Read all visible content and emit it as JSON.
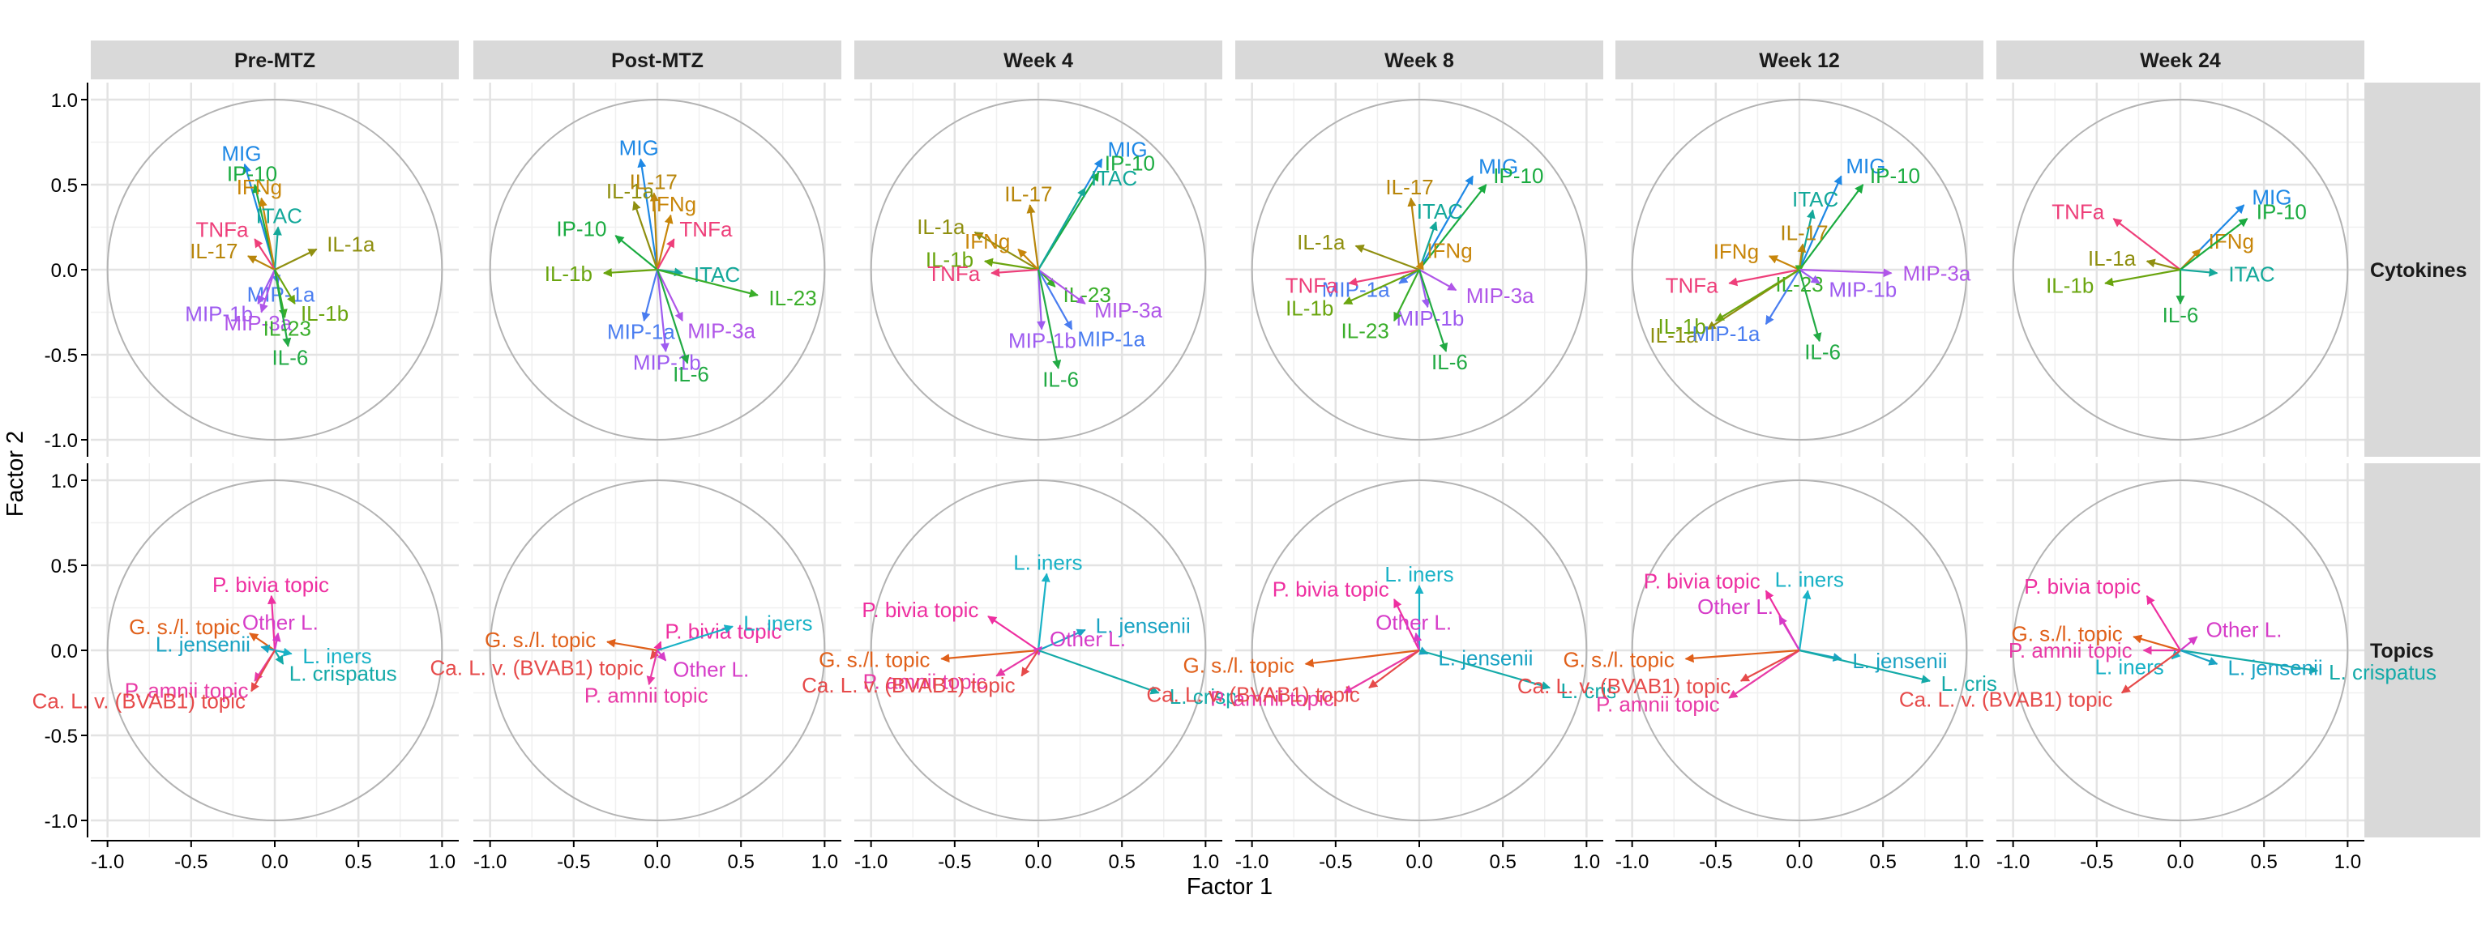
{
  "chart_data": {
    "type": "biplot",
    "xlabel": "Factor 1",
    "ylabel": "Factor 2",
    "xlim": [
      -1.1,
      1.1
    ],
    "ylim": [
      -1.1,
      1.1
    ],
    "x_ticks": [
      -1.0,
      -0.5,
      0.0,
      0.5,
      1.0
    ],
    "y_ticks": [
      -1.0,
      -0.5,
      0.0,
      0.5,
      1.0
    ],
    "x_tick_labels": [
      "-1.0",
      "-0.5",
      "0.0",
      "0.5",
      "1.0"
    ],
    "y_tick_labels": [
      "-1.0",
      "-0.5",
      "0.0",
      "0.5",
      "1.0"
    ],
    "grid": true,
    "unit_circle": true,
    "columns": [
      "Pre-MTZ",
      "Post-MTZ",
      "Week 4",
      "Week 8",
      "Week 12",
      "Week 24"
    ],
    "rows": [
      "Cytokines",
      "Topics"
    ],
    "colors": {
      "MIG": "#1e88e5",
      "IP-10": "#1aab40",
      "IFNg": "#c8860a",
      "ITAC": "#14a89a",
      "TNFa": "#ee3f7a",
      "IL-1a": "#8f8f10",
      "IL-17": "#b8860b",
      "IL-1b": "#6aa50f",
      "MIP-1a": "#4a7df0",
      "MIP-1b": "#9e5bf0",
      "MIP-3a": "#b056e8",
      "IL-23": "#3aae2a",
      "IL-6": "#22aa44",
      "P. bivia topic": "#ee2fa0",
      "G. s./l. topic": "#e0601a",
      "Other L.": "#d63cc8",
      "L. jensenii": "#1aa3c3",
      "L. iners": "#19b2c6",
      "L. crispatus": "#14aaa8",
      "P. amnii topic": "#e83aa6",
      "Ca. L. v. (BVAB1) topic": "#e64a4a"
    },
    "panels": [
      {
        "row": "Cytokines",
        "column": "Pre-MTZ",
        "vectors": [
          {
            "name": "MIG",
            "x": -0.18,
            "y": 0.62
          },
          {
            "name": "IP-10",
            "x": -0.12,
            "y": 0.5
          },
          {
            "name": "IFNg",
            "x": -0.08,
            "y": 0.42
          },
          {
            "name": "ITAC",
            "x": 0.02,
            "y": 0.25
          },
          {
            "name": "TNFa",
            "x": -0.12,
            "y": 0.18
          },
          {
            "name": "IL-17",
            "x": -0.16,
            "y": 0.08
          },
          {
            "name": "IL-1a",
            "x": 0.25,
            "y": 0.12
          },
          {
            "name": "MIP-1a",
            "x": 0.02,
            "y": -0.08
          },
          {
            "name": "MIP-1b",
            "x": -0.1,
            "y": -0.2
          },
          {
            "name": "IL-1b",
            "x": 0.12,
            "y": -0.2
          },
          {
            "name": "MIP-3a",
            "x": -0.08,
            "y": -0.25
          },
          {
            "name": "IL-23",
            "x": 0.06,
            "y": -0.28
          },
          {
            "name": "IL-6",
            "x": 0.08,
            "y": -0.45
          }
        ]
      },
      {
        "row": "Cytokines",
        "column": "Post-MTZ",
        "vectors": [
          {
            "name": "MIG",
            "x": -0.1,
            "y": 0.65
          },
          {
            "name": "IL-1a",
            "x": -0.14,
            "y": 0.4
          },
          {
            "name": "IL-17",
            "x": -0.02,
            "y": 0.45
          },
          {
            "name": "IFNg",
            "x": 0.08,
            "y": 0.32
          },
          {
            "name": "IP-10",
            "x": -0.25,
            "y": 0.2
          },
          {
            "name": "TNFa",
            "x": 0.1,
            "y": 0.18
          },
          {
            "name": "ITAC",
            "x": 0.15,
            "y": -0.02
          },
          {
            "name": "IL-1b",
            "x": -0.32,
            "y": -0.02
          },
          {
            "name": "IL-23",
            "x": 0.6,
            "y": -0.15
          },
          {
            "name": "MIP-1a",
            "x": -0.08,
            "y": -0.3
          },
          {
            "name": "MIP-3a",
            "x": 0.15,
            "y": -0.3
          },
          {
            "name": "MIP-1b",
            "x": 0.05,
            "y": -0.48
          },
          {
            "name": "IL-6",
            "x": 0.18,
            "y": -0.55
          }
        ]
      },
      {
        "row": "Cytokines",
        "column": "Week 4",
        "vectors": [
          {
            "name": "MIG",
            "x": 0.38,
            "y": 0.65
          },
          {
            "name": "IP-10",
            "x": 0.36,
            "y": 0.57
          },
          {
            "name": "ITAC",
            "x": 0.28,
            "y": 0.48
          },
          {
            "name": "IL-17",
            "x": -0.05,
            "y": 0.38
          },
          {
            "name": "IL-1a",
            "x": -0.38,
            "y": 0.22
          },
          {
            "name": "IFNg",
            "x": -0.12,
            "y": 0.12
          },
          {
            "name": "IL-1b",
            "x": -0.32,
            "y": 0.05
          },
          {
            "name": "TNFa",
            "x": -0.28,
            "y": -0.02
          },
          {
            "name": "IL-23",
            "x": 0.1,
            "y": -0.1
          },
          {
            "name": "MIP-3a",
            "x": 0.28,
            "y": -0.2
          },
          {
            "name": "MIP-1b",
            "x": 0.02,
            "y": -0.35
          },
          {
            "name": "MIP-1a",
            "x": 0.2,
            "y": -0.35
          },
          {
            "name": "IL-6",
            "x": 0.12,
            "y": -0.58
          }
        ]
      },
      {
        "row": "Cytokines",
        "column": "Week 8",
        "vectors": [
          {
            "name": "MIG",
            "x": 0.32,
            "y": 0.55
          },
          {
            "name": "IP-10",
            "x": 0.4,
            "y": 0.5
          },
          {
            "name": "IL-17",
            "x": -0.05,
            "y": 0.42
          },
          {
            "name": "ITAC",
            "x": 0.1,
            "y": 0.28
          },
          {
            "name": "IL-1a",
            "x": -0.38,
            "y": 0.14
          },
          {
            "name": "IFNg",
            "x": 0.02,
            "y": 0.05
          },
          {
            "name": "MIP-1a",
            "x": -0.12,
            "y": -0.08
          },
          {
            "name": "TNFa",
            "x": -0.42,
            "y": -0.08
          },
          {
            "name": "MIP-3a",
            "x": 0.22,
            "y": -0.12
          },
          {
            "name": "IL-1b",
            "x": -0.45,
            "y": -0.2
          },
          {
            "name": "MIP-1b",
            "x": 0.05,
            "y": -0.22
          },
          {
            "name": "IL-23",
            "x": -0.15,
            "y": -0.3
          },
          {
            "name": "IL-6",
            "x": 0.16,
            "y": -0.48
          }
        ]
      },
      {
        "row": "Cytokines",
        "column": "Week 12",
        "vectors": [
          {
            "name": "MIG",
            "x": 0.25,
            "y": 0.55
          },
          {
            "name": "IP-10",
            "x": 0.38,
            "y": 0.5
          },
          {
            "name": "ITAC",
            "x": 0.08,
            "y": 0.35
          },
          {
            "name": "IFNg",
            "x": -0.18,
            "y": 0.08
          },
          {
            "name": "IL-17",
            "x": 0.02,
            "y": 0.15
          },
          {
            "name": "TNFa",
            "x": -0.42,
            "y": -0.08
          },
          {
            "name": "IL-23",
            "x": 0.0,
            "y": -0.02
          },
          {
            "name": "MIP-3a",
            "x": 0.55,
            "y": -0.02
          },
          {
            "name": "IL-1a",
            "x": -0.55,
            "y": -0.35
          },
          {
            "name": "MIP-1b",
            "x": 0.12,
            "y": -0.08
          },
          {
            "name": "MIP-1a",
            "x": -0.2,
            "y": -0.32
          },
          {
            "name": "IL-1b",
            "x": -0.5,
            "y": -0.3
          },
          {
            "name": "IL-6",
            "x": 0.12,
            "y": -0.42
          }
        ]
      },
      {
        "row": "Cytokines",
        "column": "Week 24",
        "vectors": [
          {
            "name": "MIG",
            "x": 0.38,
            "y": 0.38
          },
          {
            "name": "TNFa",
            "x": -0.4,
            "y": 0.3
          },
          {
            "name": "IFNg",
            "x": 0.12,
            "y": 0.12
          },
          {
            "name": "IP-10",
            "x": 0.4,
            "y": 0.3
          },
          {
            "name": "IL-1a",
            "x": -0.2,
            "y": 0.05
          },
          {
            "name": "ITAC",
            "x": 0.22,
            "y": -0.02
          },
          {
            "name": "IL-1b",
            "x": -0.45,
            "y": -0.08
          },
          {
            "name": "IL-6",
            "x": 0.0,
            "y": -0.2
          }
        ]
      },
      {
        "row": "Topics",
        "column": "Pre-MTZ",
        "vectors": [
          {
            "name": "P. bivia topic",
            "x": -0.02,
            "y": 0.32
          },
          {
            "name": "G. s./l. topic",
            "x": -0.15,
            "y": 0.1
          },
          {
            "name": "Other L.",
            "x": 0.02,
            "y": 0.1
          },
          {
            "name": "L. jensenii",
            "x": -0.08,
            "y": 0.02
          },
          {
            "name": "L. iners",
            "x": 0.1,
            "y": -0.02
          },
          {
            "name": "L. crispatus",
            "x": 0.05,
            "y": -0.08
          },
          {
            "name": "P. amnii topic",
            "x": -0.12,
            "y": -0.18
          },
          {
            "name": "Ca. L. v. (BVAB1) topic",
            "x": -0.14,
            "y": -0.24
          }
        ]
      },
      {
        "row": "Topics",
        "column": "Post-MTZ",
        "vectors": [
          {
            "name": "G. s./l. topic",
            "x": -0.3,
            "y": 0.05
          },
          {
            "name": "P. bivia topic",
            "x": 0.02,
            "y": 0.05
          },
          {
            "name": "L. iners",
            "x": 0.45,
            "y": 0.14
          },
          {
            "name": "Ca. L. v. (BVAB1) topic",
            "x": -0.04,
            "y": -0.05
          },
          {
            "name": "Other L.",
            "x": 0.05,
            "y": -0.06
          },
          {
            "name": "P. amnii topic",
            "x": -0.05,
            "y": -0.2
          }
        ]
      },
      {
        "row": "Topics",
        "column": "Week 4",
        "vectors": [
          {
            "name": "L. iners",
            "x": 0.05,
            "y": 0.45
          },
          {
            "name": "P. bivia topic",
            "x": -0.3,
            "y": 0.2
          },
          {
            "name": "L. jensenii",
            "x": 0.28,
            "y": 0.12
          },
          {
            "name": "G. s./l. topic",
            "x": -0.58,
            "y": -0.05
          },
          {
            "name": "Other L.",
            "x": 0.02,
            "y": 0.02
          },
          {
            "name": "P. amnii topic",
            "x": -0.25,
            "y": -0.15
          },
          {
            "name": "L. crispatus",
            "x": 0.72,
            "y": -0.25
          },
          {
            "name": "Ca. L. v. (BVAB1) topic",
            "x": -0.1,
            "y": -0.15
          }
        ]
      },
      {
        "row": "Topics",
        "column": "Week 8",
        "vectors": [
          {
            "name": "L. iners",
            "x": 0.0,
            "y": 0.38
          },
          {
            "name": "P. bivia topic",
            "x": -0.15,
            "y": 0.3
          },
          {
            "name": "Other L.",
            "x": -0.02,
            "y": 0.1
          },
          {
            "name": "G. s./l. topic",
            "x": -0.68,
            "y": -0.08
          },
          {
            "name": "L. jensenii",
            "x": 0.05,
            "y": -0.02
          },
          {
            "name": "P. amnii topic",
            "x": -0.45,
            "y": -0.25
          },
          {
            "name": "L. crispatus",
            "x": 0.78,
            "y": -0.22
          },
          {
            "name": "Ca. L. v. (BVAB1) topic",
            "x": -0.3,
            "y": -0.22
          }
        ]
      },
      {
        "row": "Topics",
        "column": "Week 12",
        "vectors": [
          {
            "name": "P. bivia topic",
            "x": -0.2,
            "y": 0.35
          },
          {
            "name": "L. iners",
            "x": 0.05,
            "y": 0.35
          },
          {
            "name": "Other L.",
            "x": -0.12,
            "y": 0.2
          },
          {
            "name": "G. s./l. topic",
            "x": -0.68,
            "y": -0.05
          },
          {
            "name": "L. jensenii",
            "x": 0.25,
            "y": -0.05
          },
          {
            "name": "L. crispatus",
            "x": 0.78,
            "y": -0.18
          },
          {
            "name": "P. amnii topic",
            "x": -0.42,
            "y": -0.28
          },
          {
            "name": "Ca. L. v. (BVAB1) topic",
            "x": -0.35,
            "y": -0.18
          }
        ]
      },
      {
        "row": "Topics",
        "column": "Week 24",
        "vectors": [
          {
            "name": "P. bivia topic",
            "x": -0.2,
            "y": 0.32
          },
          {
            "name": "G. s./l. topic",
            "x": -0.28,
            "y": 0.08
          },
          {
            "name": "Other L.",
            "x": 0.1,
            "y": 0.08
          },
          {
            "name": "P. amnii topic",
            "x": -0.22,
            "y": 0.0
          },
          {
            "name": "L. crispatus",
            "x": 0.82,
            "y": -0.12
          },
          {
            "name": "L. iners",
            "x": -0.05,
            "y": -0.05
          },
          {
            "name": "L. jensenii",
            "x": 0.22,
            "y": -0.08
          },
          {
            "name": "Ca. L. v. (BVAB1) topic",
            "x": -0.35,
            "y": -0.25
          }
        ]
      }
    ],
    "label_offsets_note": ""
  }
}
